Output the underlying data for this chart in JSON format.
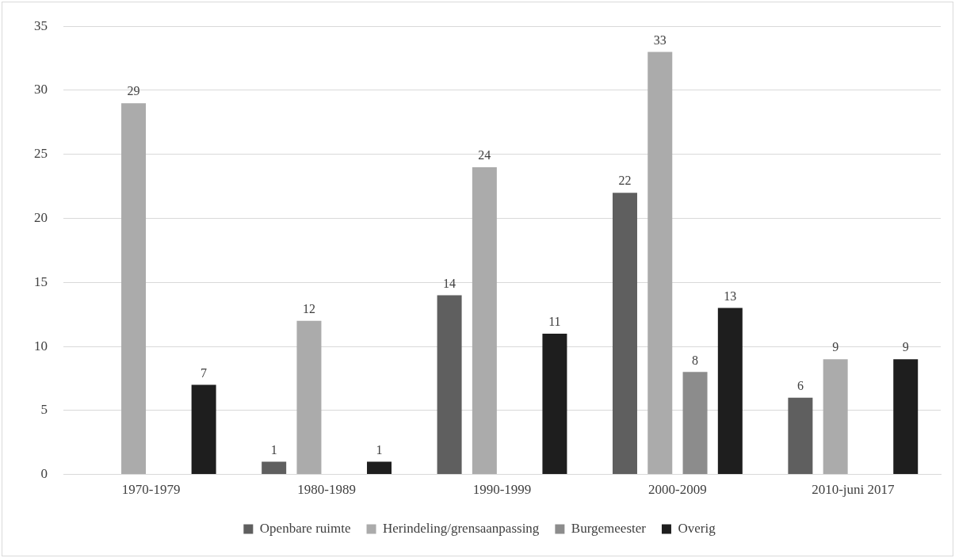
{
  "chart_data": {
    "type": "bar",
    "categories": [
      "1970-1979",
      "1980-1989",
      "1990-1999",
      "2000-2009",
      "2010-juni 2017"
    ],
    "series": [
      {
        "name": "Openbare ruimte",
        "color": "#5f5f5f",
        "values": [
          null,
          1,
          14,
          22,
          6
        ]
      },
      {
        "name": "Herindeling/grensaanpassing",
        "color": "#ababab",
        "values": [
          29,
          12,
          24,
          33,
          9
        ]
      },
      {
        "name": "Burgemeester",
        "color": "#8c8c8c",
        "values": [
          null,
          null,
          null,
          8,
          null
        ]
      },
      {
        "name": "Overig",
        "color": "#1e1e1e",
        "values": [
          7,
          1,
          11,
          13,
          9
        ]
      }
    ],
    "ylim": [
      0,
      35
    ],
    "yticks": [
      0,
      5,
      10,
      15,
      20,
      25,
      30,
      35
    ],
    "grid": "y",
    "legend": "bottom",
    "data_labels": true
  }
}
